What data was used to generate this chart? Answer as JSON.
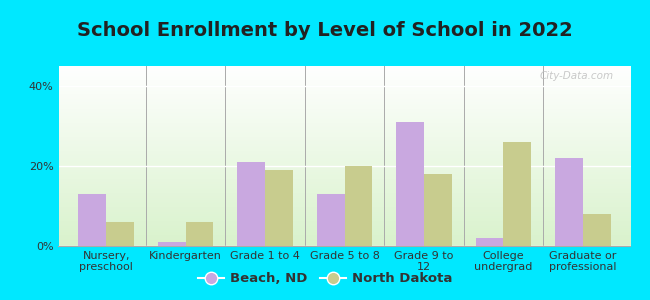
{
  "title": "School Enrollment by Level of School in 2022",
  "categories": [
    "Nursery,\npreschool",
    "Kindergarten",
    "Grade 1 to 4",
    "Grade 5 to 8",
    "Grade 9 to\n12",
    "College\nundergrad",
    "Graduate or\nprofessional"
  ],
  "beach_nd": [
    13,
    1,
    21,
    13,
    31,
    2,
    22
  ],
  "north_dakota": [
    6,
    6,
    19,
    20,
    18,
    26,
    8
  ],
  "bar_color_beach": "#c9a8e0",
  "bar_color_nd": "#c8cc8e",
  "background_outer": "#00e8ff",
  "yticks": [
    0,
    20,
    40
  ],
  "ylim": [
    0,
    45
  ],
  "legend_labels": [
    "Beach, ND",
    "North Dakota"
  ],
  "watermark": "City-Data.com",
  "title_fontsize": 14,
  "tick_fontsize": 8,
  "legend_fontsize": 9.5,
  "title_color": "#222222"
}
